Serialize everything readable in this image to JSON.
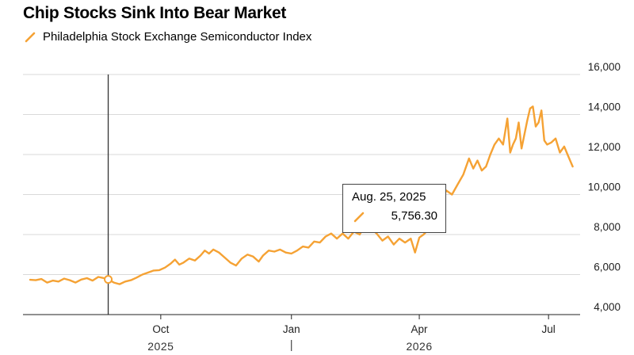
{
  "title": "Chip Stocks Sink Into Bear Market",
  "legend": {
    "label": "Philadelphia Stock Exchange Semiconductor Index"
  },
  "colors": {
    "series": "#f5a234",
    "grid": "#d9d9d9",
    "axis": "#222222",
    "cursor": "#333333"
  },
  "tooltip": {
    "date": "Aug. 25, 2025",
    "value": "5,756.30"
  },
  "chart_data": {
    "type": "line",
    "title": "Chip Stocks Sink Into Bear Market",
    "xlabel": "",
    "ylabel": "",
    "ylim": [
      4000,
      16000
    ],
    "grid": true,
    "legend_position": "top-left",
    "y_ticks": [
      {
        "value": 4000,
        "label": "4,000"
      },
      {
        "value": 6000,
        "label": "6,000"
      },
      {
        "value": 8000,
        "label": "8,000"
      },
      {
        "value": 10000,
        "label": "10,000"
      },
      {
        "value": 12000,
        "label": "12,000"
      },
      {
        "value": 14000,
        "label": "14,000"
      },
      {
        "value": 16000,
        "label": "16,000"
      }
    ],
    "x_ticks": [
      {
        "date": "2025-10-01",
        "label": "Oct"
      },
      {
        "date": "2026-01-01",
        "label": "Jan"
      },
      {
        "date": "2026-04-01",
        "label": "Apr"
      },
      {
        "date": "2026-07-01",
        "label": "Jul"
      }
    ],
    "year_labels": [
      {
        "date": "2025-10-01",
        "label": "2025"
      },
      {
        "date": "2026-04-01",
        "label": "2026"
      }
    ],
    "year_divider": "2026-01-01",
    "highlight": {
      "date": "2025-08-25",
      "value": 5756.3
    },
    "series": [
      {
        "name": "Philadelphia Stock Exchange Semiconductor Index",
        "points": [
          [
            "2025-07-01",
            5740
          ],
          [
            "2025-07-05",
            5720
          ],
          [
            "2025-07-09",
            5780
          ],
          [
            "2025-07-13",
            5600
          ],
          [
            "2025-07-17",
            5700
          ],
          [
            "2025-07-21",
            5650
          ],
          [
            "2025-07-25",
            5800
          ],
          [
            "2025-07-29",
            5720
          ],
          [
            "2025-08-02",
            5600
          ],
          [
            "2025-08-06",
            5750
          ],
          [
            "2025-08-10",
            5820
          ],
          [
            "2025-08-14",
            5700
          ],
          [
            "2025-08-18",
            5880
          ],
          [
            "2025-08-22",
            5820
          ],
          [
            "2025-08-25",
            5756
          ],
          [
            "2025-08-29",
            5600
          ],
          [
            "2025-09-02",
            5520
          ],
          [
            "2025-09-06",
            5650
          ],
          [
            "2025-09-10",
            5720
          ],
          [
            "2025-09-14",
            5850
          ],
          [
            "2025-09-18",
            6000
          ],
          [
            "2025-09-22",
            6100
          ],
          [
            "2025-09-26",
            6200
          ],
          [
            "2025-09-30",
            6220
          ],
          [
            "2025-10-04",
            6350
          ],
          [
            "2025-10-08",
            6550
          ],
          [
            "2025-10-11",
            6750
          ],
          [
            "2025-10-14",
            6500
          ],
          [
            "2025-10-17",
            6600
          ],
          [
            "2025-10-21",
            6800
          ],
          [
            "2025-10-25",
            6700
          ],
          [
            "2025-10-29",
            6950
          ],
          [
            "2025-11-01",
            7200
          ],
          [
            "2025-11-04",
            7050
          ],
          [
            "2025-11-07",
            7250
          ],
          [
            "2025-11-11",
            7100
          ],
          [
            "2025-11-15",
            6850
          ],
          [
            "2025-11-19",
            6600
          ],
          [
            "2025-11-23",
            6450
          ],
          [
            "2025-11-27",
            6800
          ],
          [
            "2025-12-01",
            7000
          ],
          [
            "2025-12-05",
            6900
          ],
          [
            "2025-12-09",
            6650
          ],
          [
            "2025-12-12",
            6950
          ],
          [
            "2025-12-16",
            7200
          ],
          [
            "2025-12-20",
            7150
          ],
          [
            "2025-12-24",
            7250
          ],
          [
            "2025-12-28",
            7100
          ],
          [
            "2026-01-01",
            7050
          ],
          [
            "2026-01-05",
            7200
          ],
          [
            "2026-01-09",
            7400
          ],
          [
            "2026-01-13",
            7350
          ],
          [
            "2026-01-17",
            7650
          ],
          [
            "2026-01-21",
            7600
          ],
          [
            "2026-01-25",
            7900
          ],
          [
            "2026-01-29",
            8050
          ],
          [
            "2026-02-02",
            7800
          ],
          [
            "2026-02-06",
            8050
          ],
          [
            "2026-02-10",
            7800
          ],
          [
            "2026-02-14",
            8150
          ],
          [
            "2026-02-18",
            8000
          ],
          [
            "2026-02-22",
            8500
          ],
          [
            "2026-02-26",
            8300
          ],
          [
            "2026-03-02",
            8050
          ],
          [
            "2026-03-06",
            7700
          ],
          [
            "2026-03-10",
            7900
          ],
          [
            "2026-03-14",
            7500
          ],
          [
            "2026-03-18",
            7800
          ],
          [
            "2026-03-22",
            7600
          ],
          [
            "2026-03-26",
            7800
          ],
          [
            "2026-03-29",
            7100
          ],
          [
            "2026-04-01",
            7850
          ],
          [
            "2026-04-04",
            8000
          ],
          [
            "2026-04-08",
            8300
          ],
          [
            "2026-04-12",
            9000
          ],
          [
            "2026-04-16",
            9700
          ],
          [
            "2026-04-20",
            10200
          ],
          [
            "2026-04-24",
            10000
          ],
          [
            "2026-04-28",
            10500
          ],
          [
            "2026-05-02",
            11000
          ],
          [
            "2026-05-06",
            11800
          ],
          [
            "2026-05-09",
            11300
          ],
          [
            "2026-05-12",
            11700
          ],
          [
            "2026-05-15",
            11200
          ],
          [
            "2026-05-18",
            11400
          ],
          [
            "2026-05-21",
            12000
          ],
          [
            "2026-05-24",
            12500
          ],
          [
            "2026-05-27",
            12800
          ],
          [
            "2026-05-30",
            12500
          ],
          [
            "2026-06-02",
            13800
          ],
          [
            "2026-06-04",
            12100
          ],
          [
            "2026-06-06",
            12500
          ],
          [
            "2026-06-08",
            12800
          ],
          [
            "2026-06-10",
            13600
          ],
          [
            "2026-06-12",
            12300
          ],
          [
            "2026-06-14",
            13000
          ],
          [
            "2026-06-16",
            13700
          ],
          [
            "2026-06-18",
            14300
          ],
          [
            "2026-06-20",
            14400
          ],
          [
            "2026-06-22",
            13400
          ],
          [
            "2026-06-24",
            13600
          ],
          [
            "2026-06-26",
            14200
          ],
          [
            "2026-06-28",
            12700
          ],
          [
            "2026-06-30",
            12500
          ],
          [
            "2026-07-03",
            12600
          ],
          [
            "2026-07-06",
            12800
          ],
          [
            "2026-07-09",
            12100
          ],
          [
            "2026-07-12",
            12400
          ],
          [
            "2026-07-15",
            11900
          ],
          [
            "2026-07-18",
            11400
          ]
        ]
      }
    ]
  }
}
